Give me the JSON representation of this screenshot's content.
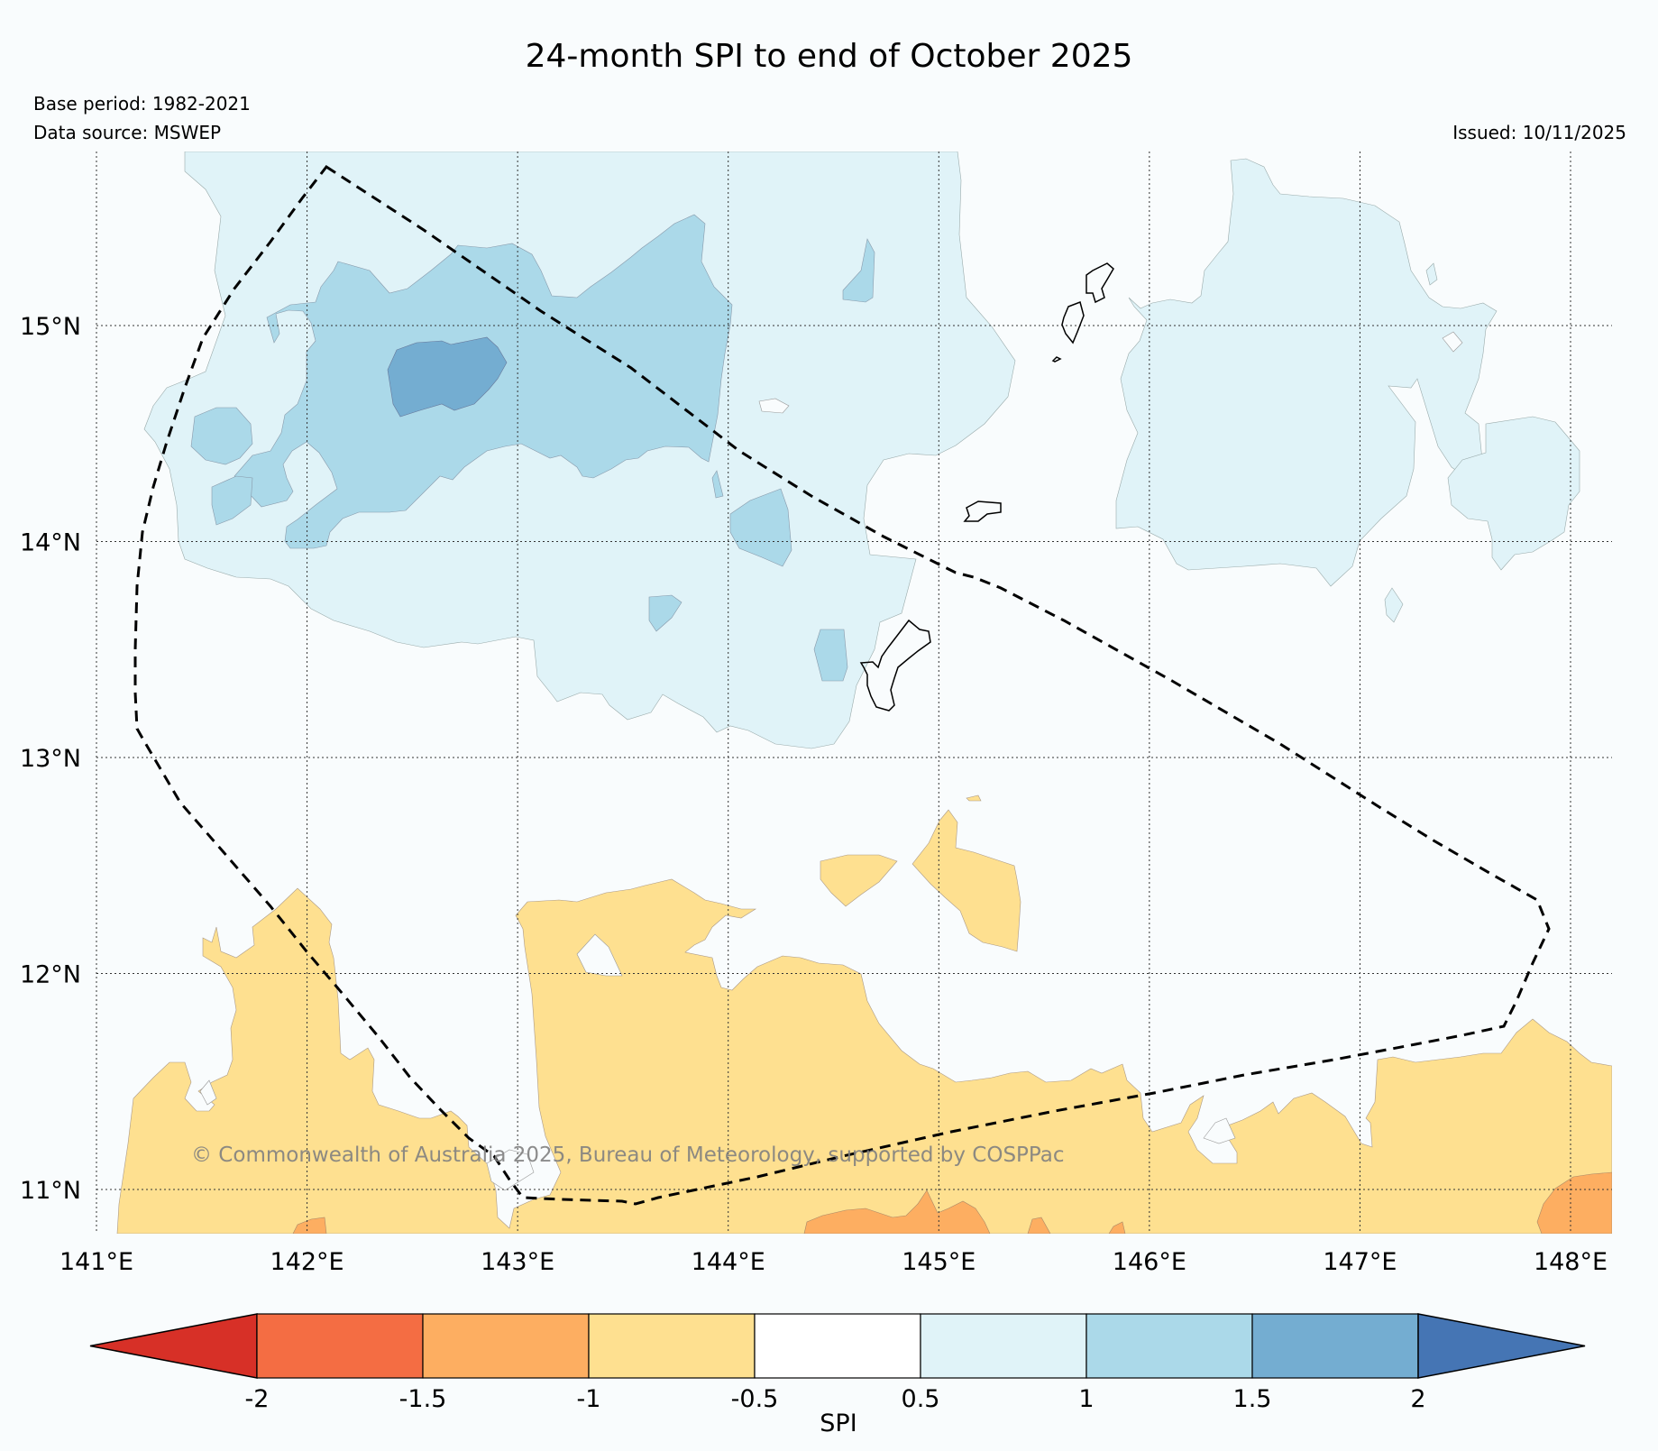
{
  "title": "24-month SPI to end of October 2025",
  "base_period": "Base period: 1982-2021",
  "data_source": "Data source: MSWEP",
  "issued": "Issued: 10/11/2025",
  "copyright": "© Commonwealth of Australia 2025, Bureau of Meteorology, supported by COSPPac",
  "map": {
    "lon_range": [
      141,
      148.2
    ],
    "lat_range": [
      10.8,
      15.8
    ],
    "lon_ticks": [
      {
        "value": 141,
        "label": "141°E"
      },
      {
        "value": 142,
        "label": "142°E"
      },
      {
        "value": 143,
        "label": "143°E"
      },
      {
        "value": 144,
        "label": "144°E"
      },
      {
        "value": 145,
        "label": "145°E"
      },
      {
        "value": 146,
        "label": "146°E"
      },
      {
        "value": 147,
        "label": "147°E"
      },
      {
        "value": 148,
        "label": "148°E"
      }
    ],
    "lat_ticks": [
      {
        "value": 15,
        "label": "15°N"
      },
      {
        "value": 14,
        "label": "14°N"
      },
      {
        "value": 13,
        "label": "13°N"
      },
      {
        "value": 12,
        "label": "12°N"
      },
      {
        "value": 11,
        "label": "11°N"
      }
    ]
  },
  "colorbar": {
    "label": "SPI",
    "ticks": [
      "-2",
      "-1.5",
      "-1",
      "-0.5",
      "0.5",
      "1",
      "1.5",
      "2"
    ],
    "colors": [
      "#d73027",
      "#f46d43",
      "#fdae61",
      "#fee090",
      "#ffffff",
      "#e0f3f8",
      "#abd9e9",
      "#74add1",
      "#4575b4"
    ]
  },
  "colors": {
    "wet_mild": "#e0f3f8",
    "wet_moderate": "#abd9e9",
    "wet_severe": "#74add1",
    "dry_mild": "#fee090",
    "dry_moderate": "#fdae61",
    "background": "#f9fcfd"
  }
}
